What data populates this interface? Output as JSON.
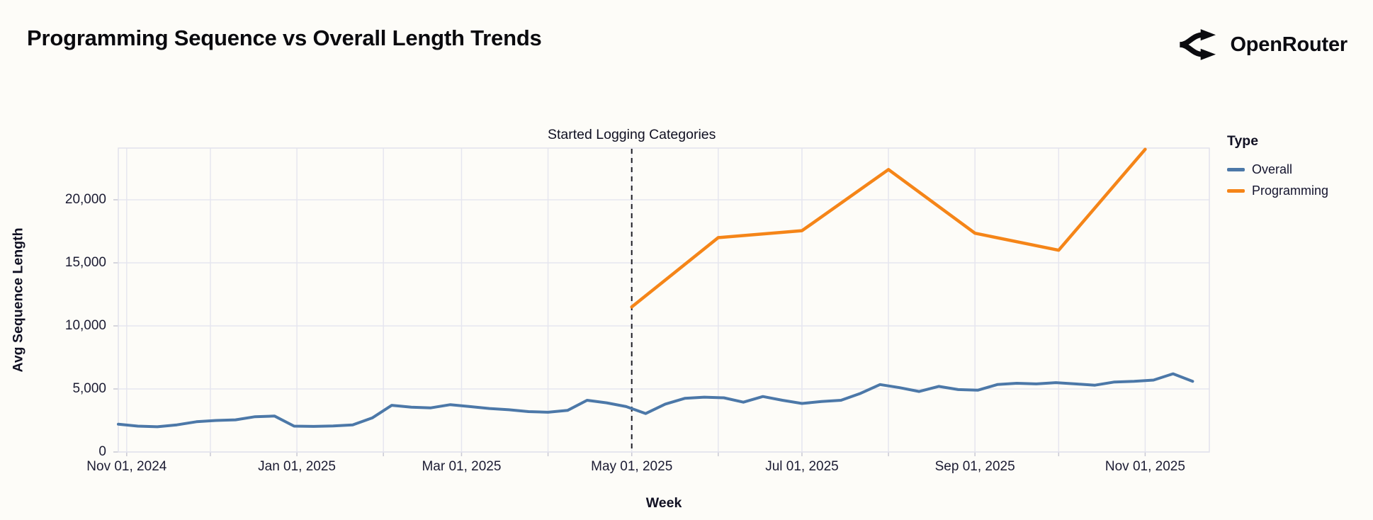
{
  "page": {
    "background": "#fdfcf8"
  },
  "header": {
    "title": "Programming Sequence vs Overall Length Trends",
    "brand": {
      "name": "OpenRouter",
      "icon": "openrouter-branching-arrows-icon"
    }
  },
  "chart_data": {
    "type": "line",
    "title": "Programming Sequence vs Overall Length Trends",
    "xlabel": "Week",
    "ylabel": "Avg Sequence Length",
    "ylim": [
      0,
      24100
    ],
    "grid": true,
    "legend": {
      "title": "Type",
      "position": "right",
      "entries": [
        {
          "label": "Overall",
          "color": "#4c78a8"
        },
        {
          "label": "Programming",
          "color": "#f58518"
        }
      ]
    },
    "annotation": {
      "label": "Started Logging Categories",
      "date": "2025-05-01",
      "style": "vertical-dashed-line"
    },
    "x_ticks": [
      {
        "date": "2024-11-01",
        "label": "Nov 01, 2024"
      },
      {
        "date": "2025-01-01",
        "label": "Jan 01, 2025"
      },
      {
        "date": "2025-03-01",
        "label": "Mar 01, 2025"
      },
      {
        "date": "2025-05-01",
        "label": "May 01, 2025"
      },
      {
        "date": "2025-07-01",
        "label": "Jul 01, 2025"
      },
      {
        "date": "2025-09-01",
        "label": "Sep 01, 2025"
      },
      {
        "date": "2025-11-01",
        "label": "Nov 01, 2025"
      }
    ],
    "y_ticks": [
      {
        "value": 0,
        "label": "0"
      },
      {
        "value": 5000,
        "label": "5,000"
      },
      {
        "value": 10000,
        "label": "10,000"
      },
      {
        "value": 15000,
        "label": "15,000"
      },
      {
        "value": 20000,
        "label": "20,000"
      }
    ],
    "month_gridlines": [
      "2024-11-01",
      "2024-12-01",
      "2025-01-01",
      "2025-02-01",
      "2025-03-01",
      "2025-04-01",
      "2025-05-01",
      "2025-06-01",
      "2025-07-01",
      "2025-08-01",
      "2025-09-01",
      "2025-10-01",
      "2025-11-01"
    ],
    "series": [
      {
        "name": "Overall",
        "color": "#4c78a8",
        "x": [
          "2024-10-29",
          "2024-11-05",
          "2024-11-12",
          "2024-11-19",
          "2024-11-26",
          "2024-12-03",
          "2024-12-10",
          "2024-12-17",
          "2024-12-24",
          "2024-12-31",
          "2025-01-07",
          "2025-01-14",
          "2025-01-21",
          "2025-01-28",
          "2025-02-04",
          "2025-02-11",
          "2025-02-18",
          "2025-02-25",
          "2025-03-04",
          "2025-03-11",
          "2025-03-18",
          "2025-03-25",
          "2025-04-01",
          "2025-04-08",
          "2025-04-15",
          "2025-04-22",
          "2025-04-29",
          "2025-05-06",
          "2025-05-13",
          "2025-05-20",
          "2025-05-27",
          "2025-06-03",
          "2025-06-10",
          "2025-06-17",
          "2025-06-24",
          "2025-07-01",
          "2025-07-08",
          "2025-07-15",
          "2025-07-22",
          "2025-07-29",
          "2025-08-05",
          "2025-08-12",
          "2025-08-19",
          "2025-08-26",
          "2025-09-02",
          "2025-09-09",
          "2025-09-16",
          "2025-09-23",
          "2025-09-30",
          "2025-10-07",
          "2025-10-14",
          "2025-10-21",
          "2025-10-28",
          "2025-11-04",
          "2025-11-11",
          "2025-11-18"
        ],
        "values": [
          2200,
          2050,
          2000,
          2150,
          2400,
          2500,
          2550,
          2800,
          2850,
          2050,
          2030,
          2060,
          2150,
          2700,
          3700,
          3550,
          3500,
          3750,
          3600,
          3450,
          3350,
          3200,
          3150,
          3300,
          4100,
          3900,
          3600,
          3050,
          3800,
          4250,
          4350,
          4300,
          3950,
          4400,
          4100,
          3850,
          4000,
          4100,
          4650,
          5350,
          5100,
          4800,
          5200,
          4950,
          4900,
          5350,
          5450,
          5400,
          5500,
          5400,
          5300,
          5550,
          5600,
          5700,
          6200,
          5600
        ]
      },
      {
        "name": "Programming",
        "color": "#f58518",
        "x": [
          "2025-05-01",
          "2025-06-01",
          "2025-07-01",
          "2025-08-01",
          "2025-09-01",
          "2025-10-01",
          "2025-11-01"
        ],
        "values": [
          11500,
          17000,
          17550,
          22400,
          17350,
          16000,
          24000
        ]
      }
    ],
    "style": {
      "gridline_color": "#e6e6ef",
      "plot_border_color": "#e2e2ec",
      "tick_color": "#c9c9d4",
      "annotation_line_color": "#1c1c24"
    }
  }
}
